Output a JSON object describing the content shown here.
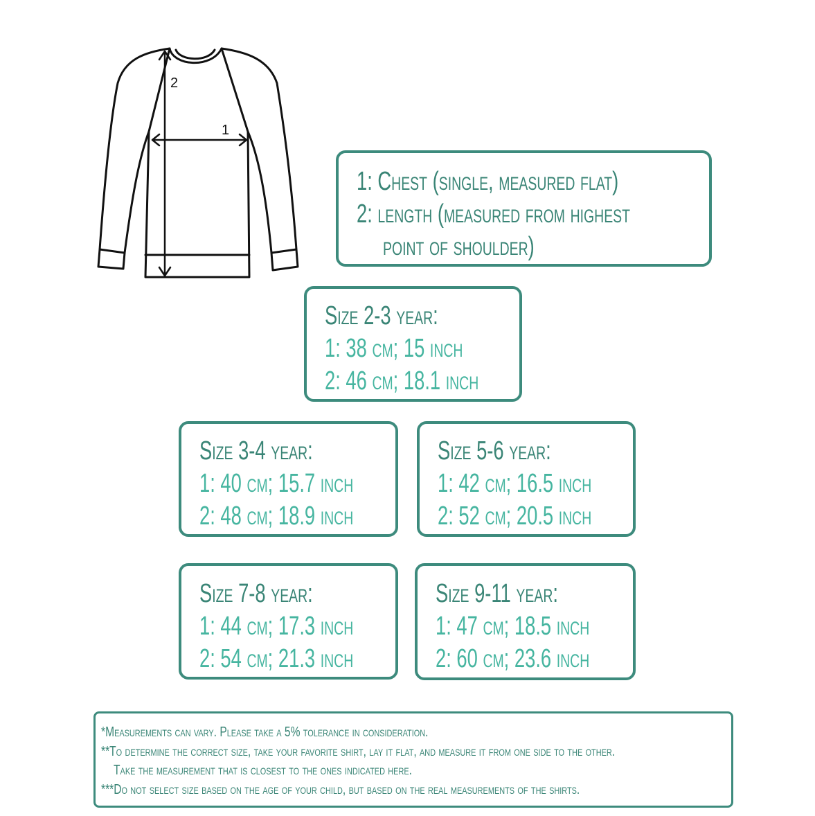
{
  "colors": {
    "border": "#3d8b7d",
    "heading": "#3a8576",
    "value": "#46b5a0"
  },
  "diagram": {
    "label_chest": "1",
    "label_length": "2"
  },
  "legend": {
    "line1": "1: Chest (single, measured flat)",
    "line2": "2: length (measured from highest",
    "line3": "point of shoulder)"
  },
  "sizes": [
    {
      "title": "Size 2-3 year:",
      "chest": "1: 38 cm; 15 inch",
      "length": "2: 46 cm; 18.1 inch"
    },
    {
      "title": "Size 3-4 year:",
      "chest": "1: 40 cm; 15.7 inch",
      "length": "2: 48 cm; 18.9 inch"
    },
    {
      "title": "Size 5-6 year:",
      "chest": "1: 42 cm; 16.5 inch",
      "length": "2: 52 cm;  20.5 inch"
    },
    {
      "title": "Size 7-8 year:",
      "chest": "1: 44 cm; 17.3 inch",
      "length": "2: 54 cm; 21.3 inch"
    },
    {
      "title": "Size 9-11 year:",
      "chest": "1: 47 cm; 18.5 inch",
      "length": "2: 60 cm; 23.6 inch"
    }
  ],
  "notes": [
    "*Measurements can vary. Please take a 5% tolerance in consideration.",
    "**To determine the correct size, take your favorite shirt, lay it flat, and measure it from one side to the other.",
    "Take the measurement that is closest to the ones indicated here.",
    "***Do not select size based on the age of your child, but based on the real measurements of the shirts."
  ]
}
